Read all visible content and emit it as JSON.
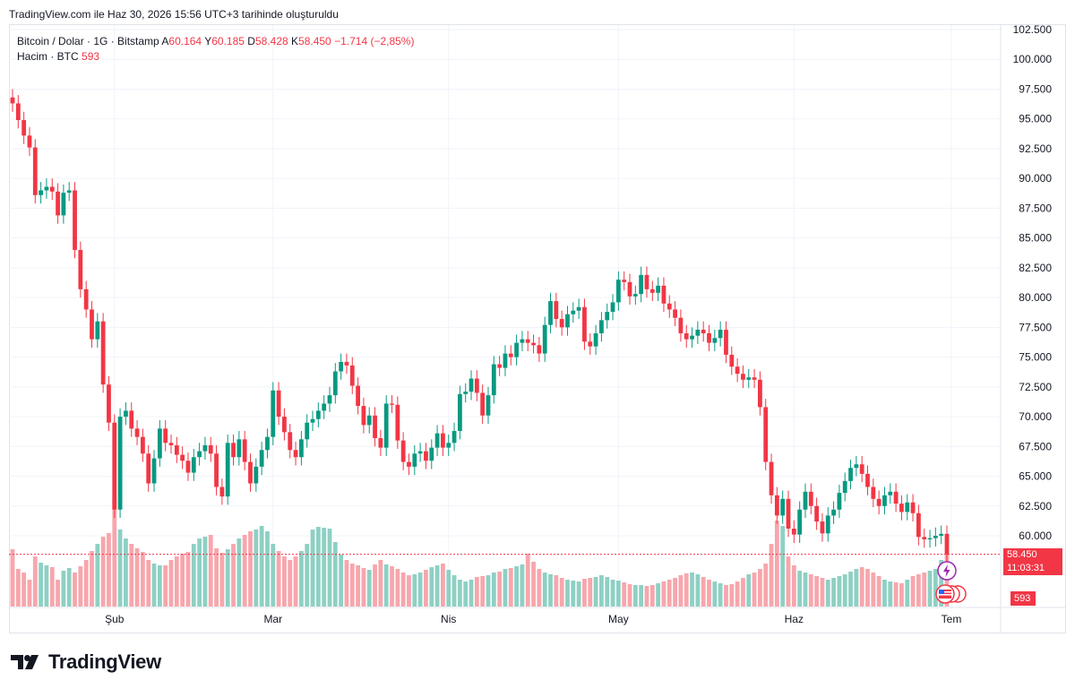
{
  "caption": "TradingView.com ile Haz 30, 2026 15:56 UTC+3 tarihinde oluşturuldu",
  "legend": {
    "symbol": "Bitcoin / Dolar · 1G · Bitstamp",
    "open_label": "A",
    "open": "60.164",
    "high_label": "Y",
    "high": "60.185",
    "low_label": "D",
    "low": "58.428",
    "close_label": "K",
    "close": "58.450",
    "change": "−1.714 (−2,85%)",
    "volume_label": "Hacim · BTC",
    "volume": "593"
  },
  "price_tag": {
    "price": "58.450",
    "countdown": "11:03:31",
    "color": "#f23645"
  },
  "volume_tag": "593",
  "brand": "TradingView",
  "colors": {
    "up": "#089981",
    "down": "#f23645",
    "up_vol": "#8ed0c4",
    "down_vol": "#f7a6ac",
    "grid": "#f0f3fa",
    "axis_text": "#131722"
  },
  "chart_data": {
    "type": "candlestick",
    "title": "Bitcoin / Dolar · 1G · Bitstamp",
    "ylim": [
      56500,
      103000
    ],
    "y_ticks": [
      "60.000",
      "62.500",
      "65.000",
      "67.500",
      "70.000",
      "72.500",
      "75.000",
      "77.500",
      "80.000",
      "82.500",
      "85.000",
      "87.500",
      "90.000",
      "92.500",
      "95.000",
      "97.500",
      "100.000",
      "102.500"
    ],
    "y_tick_values": [
      60000,
      62500,
      65000,
      67500,
      70000,
      72500,
      75000,
      77500,
      80000,
      82500,
      85000,
      87500,
      90000,
      92500,
      95000,
      97500,
      100000,
      102500
    ],
    "x_ticks": [
      {
        "label": "Şub",
        "index": 18
      },
      {
        "label": "Mar",
        "index": 46
      },
      {
        "label": "Nis",
        "index": 77
      },
      {
        "label": "May",
        "index": 107
      },
      {
        "label": "Haz",
        "index": 138
      },
      {
        "label": "Tem",
        "index": 168
      }
    ],
    "grid": true,
    "close": [
      96300,
      94900,
      93600,
      92600,
      88600,
      89000,
      89300,
      88900,
      86900,
      88800,
      89000,
      84000,
      80700,
      79000,
      76500,
      78000,
      72700,
      69500,
      62200,
      70000,
      70500,
      69000,
      68300,
      66900,
      64400,
      66500,
      69000,
      67800,
      67600,
      66800,
      66300,
      65300,
      66600,
      67100,
      67600,
      66900,
      64100,
      63300,
      67800,
      66600,
      68100,
      66200,
      64400,
      65800,
      67200,
      68300,
      72200,
      70000,
      68700,
      67200,
      66600,
      68100,
      69500,
      69800,
      70500,
      71100,
      71800,
      73800,
      74600,
      74300,
      72600,
      70900,
      69300,
      70100,
      68200,
      67400,
      71100,
      71000,
      68000,
      66200,
      65800,
      66900,
      67100,
      66300,
      67400,
      68600,
      67400,
      67800,
      68800,
      71900,
      72100,
      73200,
      72000,
      70100,
      71800,
      74400,
      74100,
      75300,
      75000,
      76200,
      76500,
      76200,
      76000,
      75300,
      77700,
      79700,
      78200,
      77500,
      78600,
      78900,
      79200,
      76300,
      75900,
      77000,
      78100,
      78800,
      79600,
      81500,
      81300,
      80100,
      80300,
      81900,
      80700,
      80400,
      81000,
      79500,
      79000,
      78300,
      77000,
      76500,
      76800,
      77300,
      77000,
      76200,
      76600,
      77300,
      75200,
      74200,
      73600,
      73100,
      73300,
      73100,
      70800,
      66200,
      63400,
      61700,
      63100,
      60600,
      60100,
      62200,
      63700,
      62500,
      61200,
      60200,
      61700,
      62200,
      63600,
      64600,
      65700,
      66000,
      65200,
      64100,
      63100,
      62500,
      63400,
      63700,
      62700,
      62000,
      62800,
      61900,
      59900,
      59700,
      59800,
      60000,
      60164,
      58450
    ],
    "open": [
      96800,
      96300,
      94900,
      93600,
      92600,
      88600,
      89000,
      89300,
      88900,
      86900,
      88800,
      89000,
      84000,
      80700,
      79000,
      76500,
      78000,
      72700,
      69500,
      62200,
      70000,
      70500,
      69000,
      68300,
      66900,
      64400,
      66500,
      69000,
      67800,
      67600,
      66800,
      66300,
      65300,
      66600,
      67100,
      67600,
      66900,
      64100,
      63300,
      67800,
      66600,
      68100,
      66200,
      64400,
      65800,
      67200,
      68300,
      72200,
      70000,
      68700,
      67200,
      66600,
      68100,
      69500,
      69800,
      70500,
      71100,
      71800,
      73800,
      74600,
      74300,
      72600,
      70900,
      69300,
      70100,
      68200,
      67400,
      71100,
      71000,
      68000,
      66200,
      65800,
      66900,
      67100,
      66300,
      67400,
      68600,
      67400,
      67800,
      68800,
      71900,
      72100,
      73200,
      72000,
      70100,
      71800,
      74400,
      74100,
      75300,
      75000,
      76200,
      76500,
      76200,
      76000,
      75300,
      77700,
      79700,
      78200,
      77500,
      78600,
      78900,
      79200,
      76300,
      75900,
      77000,
      78100,
      78800,
      79600,
      81500,
      81300,
      80100,
      80300,
      81900,
      80700,
      80400,
      81000,
      79500,
      79000,
      78300,
      77000,
      76500,
      76800,
      77300,
      77000,
      76200,
      76600,
      77300,
      75200,
      74200,
      73600,
      73100,
      73300,
      73100,
      70800,
      66200,
      63400,
      61700,
      63100,
      60600,
      60100,
      62200,
      63700,
      62500,
      61200,
      60200,
      61700,
      62200,
      63600,
      64600,
      65700,
      66000,
      65200,
      64100,
      63100,
      62500,
      63400,
      63700,
      62700,
      62000,
      62800,
      61900,
      59900,
      59700,
      59800,
      60000,
      60164
    ],
    "volume": [
      640,
      420,
      380,
      300,
      560,
      490,
      460,
      440,
      300,
      400,
      430,
      380,
      450,
      520,
      620,
      700,
      780,
      820,
      1210,
      860,
      760,
      700,
      650,
      610,
      520,
      480,
      460,
      460,
      520,
      560,
      590,
      610,
      700,
      760,
      780,
      800,
      650,
      600,
      640,
      700,
      760,
      800,
      840,
      860,
      900,
      840,
      700,
      620,
      560,
      520,
      560,
      620,
      700,
      860,
      890,
      880,
      870,
      720,
      580,
      520,
      480,
      460,
      430,
      410,
      470,
      520,
      470,
      450,
      420,
      380,
      350,
      360,
      380,
      410,
      440,
      460,
      480,
      410,
      350,
      300,
      280,
      300,
      330,
      340,
      350,
      380,
      390,
      420,
      430,
      450,
      470,
      590,
      500,
      420,
      380,
      360,
      350,
      320,
      300,
      290,
      280,
      310,
      320,
      330,
      350,
      330,
      300,
      290,
      270,
      250,
      240,
      240,
      230,
      240,
      260,
      280,
      300,
      320,
      350,
      370,
      380,
      360,
      330,
      300,
      280,
      260,
      240,
      250,
      280,
      320,
      360,
      380,
      420,
      480,
      700,
      960,
      900,
      560,
      460,
      400,
      380,
      360,
      340,
      320,
      300,
      320,
      340,
      360,
      390,
      420,
      440,
      420,
      380,
      340,
      300,
      280,
      270,
      260,
      300,
      340,
      360,
      380,
      400,
      420,
      520,
      593
    ],
    "volume_ylim": [
      0,
      1500
    ]
  }
}
